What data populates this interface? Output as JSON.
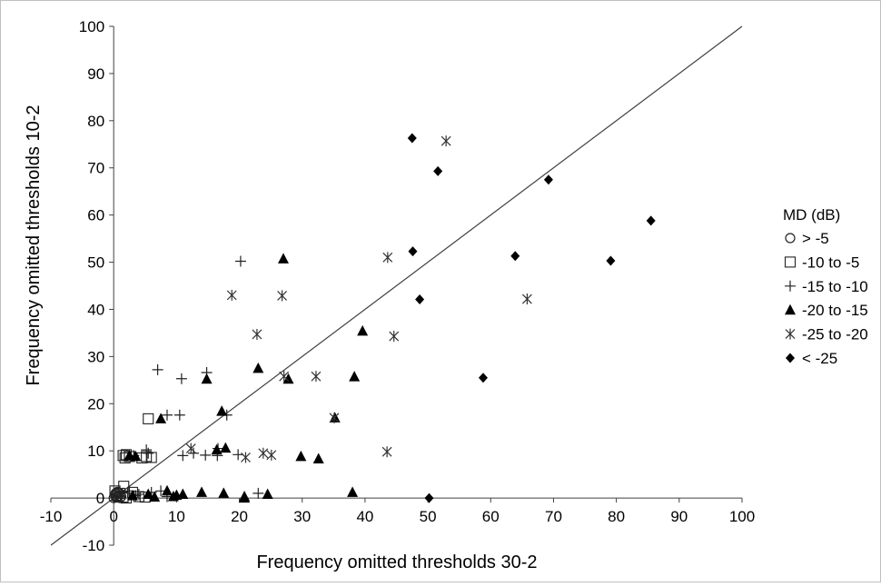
{
  "chart_data": {
    "type": "scatter",
    "title": "",
    "xlabel": "Frequency omitted thresholds 30-2",
    "ylabel": "Frequency omitted thresholds 10-2",
    "xlim": [
      -10,
      100
    ],
    "ylim": [
      -10,
      100
    ],
    "x_ticks": [
      "-10",
      "0",
      "10",
      "20",
      "30",
      "40",
      "50",
      "60",
      "70",
      "80",
      "90",
      "100"
    ],
    "y_ticks": [
      "-10",
      "0",
      "10",
      "20",
      "30",
      "40",
      "50",
      "60",
      "70",
      "80",
      "90",
      "100"
    ],
    "grid": false,
    "legend_position": "right",
    "legend_title": "MD (dB)",
    "reference_line": {
      "x": [
        -10,
        100
      ],
      "y": [
        -10,
        100
      ]
    },
    "series": [
      {
        "name": "> -5",
        "marker": "circle-open",
        "points": [
          [
            0,
            0
          ],
          [
            0.3,
            1
          ],
          [
            0.5,
            0.2
          ],
          [
            0.8,
            0.5
          ],
          [
            1,
            0
          ],
          [
            0.2,
            0.6
          ],
          [
            0.6,
            1.3
          ],
          [
            1.2,
            0.3
          ],
          [
            0.4,
            0.1
          ],
          [
            0.9,
            1.1
          ]
        ]
      },
      {
        "name": "-10 to -5",
        "marker": "square-open",
        "points": [
          [
            1.5,
            9
          ],
          [
            2,
            9.2
          ],
          [
            2.5,
            8.8
          ],
          [
            1.8,
            8.5
          ],
          [
            4.5,
            8.5
          ],
          [
            5.2,
            8.8
          ],
          [
            6,
            8.6
          ],
          [
            1.6,
            2.5
          ],
          [
            0.5,
            0.5
          ],
          [
            1,
            1
          ],
          [
            1.5,
            0.2
          ],
          [
            2,
            0
          ],
          [
            3,
            1.2
          ],
          [
            4,
            0.3
          ],
          [
            5,
            0.2
          ],
          [
            0.2,
            1.5
          ],
          [
            5.5,
            16.8
          ]
        ]
      },
      {
        "name": "-15 to -10",
        "marker": "plus",
        "points": [
          [
            7,
            27.2
          ],
          [
            10.8,
            25.3
          ],
          [
            14.8,
            26.6
          ],
          [
            20.2,
            50.2
          ],
          [
            8.5,
            17.6
          ],
          [
            10.5,
            17.6
          ],
          [
            18,
            17.6
          ],
          [
            11,
            9
          ],
          [
            12.7,
            9.5
          ],
          [
            14.6,
            9.1
          ],
          [
            16.5,
            9
          ],
          [
            16.6,
            10.5
          ],
          [
            19.8,
            9.2
          ],
          [
            23,
            1
          ],
          [
            5.5,
            9.5
          ],
          [
            3.2,
            9
          ],
          [
            5.2,
            10.2
          ],
          [
            2.5,
            1.5
          ],
          [
            3.5,
            0.5
          ],
          [
            6,
            1.2
          ],
          [
            7.5,
            1.5
          ],
          [
            8.5,
            0.3
          ],
          [
            4,
            0.8
          ]
        ]
      },
      {
        "name": "-20 to -15",
        "marker": "triangle",
        "points": [
          [
            7.5,
            16.8
          ],
          [
            14.8,
            25.2
          ],
          [
            17.2,
            18.4
          ],
          [
            16.4,
            10.2
          ],
          [
            17.8,
            10.6
          ],
          [
            23,
            27.5
          ],
          [
            27,
            50.7
          ],
          [
            27.8,
            25.2
          ],
          [
            29.8,
            8.8
          ],
          [
            32.6,
            8.3
          ],
          [
            35.2,
            17
          ],
          [
            38.3,
            25.7
          ],
          [
            39.6,
            35.4
          ],
          [
            2.5,
            9
          ],
          [
            3.5,
            8.8
          ],
          [
            3,
            0.5
          ],
          [
            5.5,
            0.8
          ],
          [
            6.5,
            0.2
          ],
          [
            9.5,
            0.3
          ],
          [
            11,
            0.8
          ],
          [
            14,
            1.2
          ],
          [
            17.5,
            1
          ],
          [
            20.8,
            0.3
          ],
          [
            24.5,
            0.8
          ],
          [
            38,
            1.2
          ],
          [
            20.8,
            0
          ],
          [
            8.5,
            1.5
          ],
          [
            10,
            0.6
          ]
        ]
      },
      {
        "name": "-25 to -20",
        "marker": "asterisk",
        "points": [
          [
            18.8,
            43
          ],
          [
            22.8,
            34.7
          ],
          [
            26.8,
            42.9
          ],
          [
            27.1,
            25.8
          ],
          [
            32.2,
            25.8
          ],
          [
            35.1,
            17
          ],
          [
            43.6,
            51
          ],
          [
            44.6,
            34.3
          ],
          [
            52.9,
            75.7
          ],
          [
            65.8,
            42.2
          ],
          [
            12.3,
            10.5
          ],
          [
            21,
            8.6
          ],
          [
            23.8,
            9.5
          ],
          [
            25.1,
            9.1
          ],
          [
            43.5,
            9.8
          ]
        ]
      },
      {
        "name": "< -25",
        "marker": "diamond",
        "points": [
          [
            47.5,
            76.3
          ],
          [
            51.6,
            69.3
          ],
          [
            69.2,
            67.5
          ],
          [
            85.5,
            58.8
          ],
          [
            63.9,
            51.3
          ],
          [
            47.6,
            52.3
          ],
          [
            79.1,
            50.3
          ],
          [
            48.7,
            42.1
          ],
          [
            58.8,
            25.5
          ],
          [
            50.2,
            0
          ]
        ]
      }
    ]
  }
}
